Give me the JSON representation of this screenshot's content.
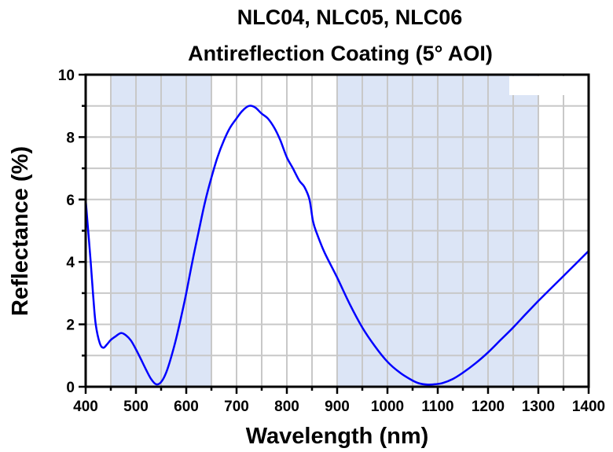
{
  "chart_data": {
    "type": "line",
    "title": "NLC04, NLC05, NLC06",
    "subtitle": "Antireflection Coating (5° AOI)",
    "xlabel": "Wavelength (nm)",
    "ylabel": "Reflectance (%)",
    "xlim": [
      400,
      1400
    ],
    "ylim": [
      0,
      10
    ],
    "xticks": [
      400,
      500,
      600,
      700,
      800,
      900,
      1000,
      1100,
      1200,
      1300,
      1400
    ],
    "yticks": [
      0,
      2,
      4,
      6,
      8,
      10
    ],
    "grid": true,
    "shaded_bands": [
      {
        "from": 450,
        "to": 650
      },
      {
        "from": 900,
        "to": 1300
      }
    ],
    "colors": {
      "line": "#0000ff",
      "band": "#dce5f6",
      "grid": "#c8c8c8",
      "axis": "#000000"
    },
    "series": [
      {
        "name": "Reflectance",
        "x": [
          400,
          405,
          410,
          415,
          420,
          428,
          435,
          442,
          450,
          460,
          470,
          480,
          490,
          500,
          510,
          520,
          530,
          540,
          550,
          560,
          570,
          580,
          590,
          600,
          612,
          625,
          637,
          650,
          662,
          675,
          687,
          700,
          712,
          725,
          737,
          750,
          762,
          775,
          787,
          800,
          812,
          825,
          835,
          845,
          852,
          860,
          875,
          900,
          925,
          950,
          975,
          1000,
          1025,
          1050,
          1065,
          1080,
          1095,
          1110,
          1130,
          1150,
          1175,
          1200,
          1225,
          1250,
          1275,
          1300,
          1325,
          1350,
          1375,
          1400
        ],
        "values": [
          6.0,
          5.0,
          4.0,
          2.9,
          2.0,
          1.4,
          1.25,
          1.35,
          1.5,
          1.62,
          1.72,
          1.65,
          1.48,
          1.2,
          0.88,
          0.55,
          0.25,
          0.08,
          0.15,
          0.45,
          0.95,
          1.55,
          2.25,
          3.0,
          4.0,
          5.0,
          5.9,
          6.7,
          7.35,
          7.9,
          8.3,
          8.6,
          8.85,
          9.0,
          8.95,
          8.75,
          8.6,
          8.3,
          7.9,
          7.35,
          7.0,
          6.6,
          6.4,
          6.0,
          5.3,
          4.9,
          4.3,
          3.5,
          2.65,
          1.9,
          1.3,
          0.8,
          0.45,
          0.2,
          0.1,
          0.07,
          0.08,
          0.12,
          0.25,
          0.45,
          0.75,
          1.1,
          1.5,
          1.9,
          2.33,
          2.75,
          3.15,
          3.55,
          3.95,
          4.35
        ]
      }
    ]
  }
}
